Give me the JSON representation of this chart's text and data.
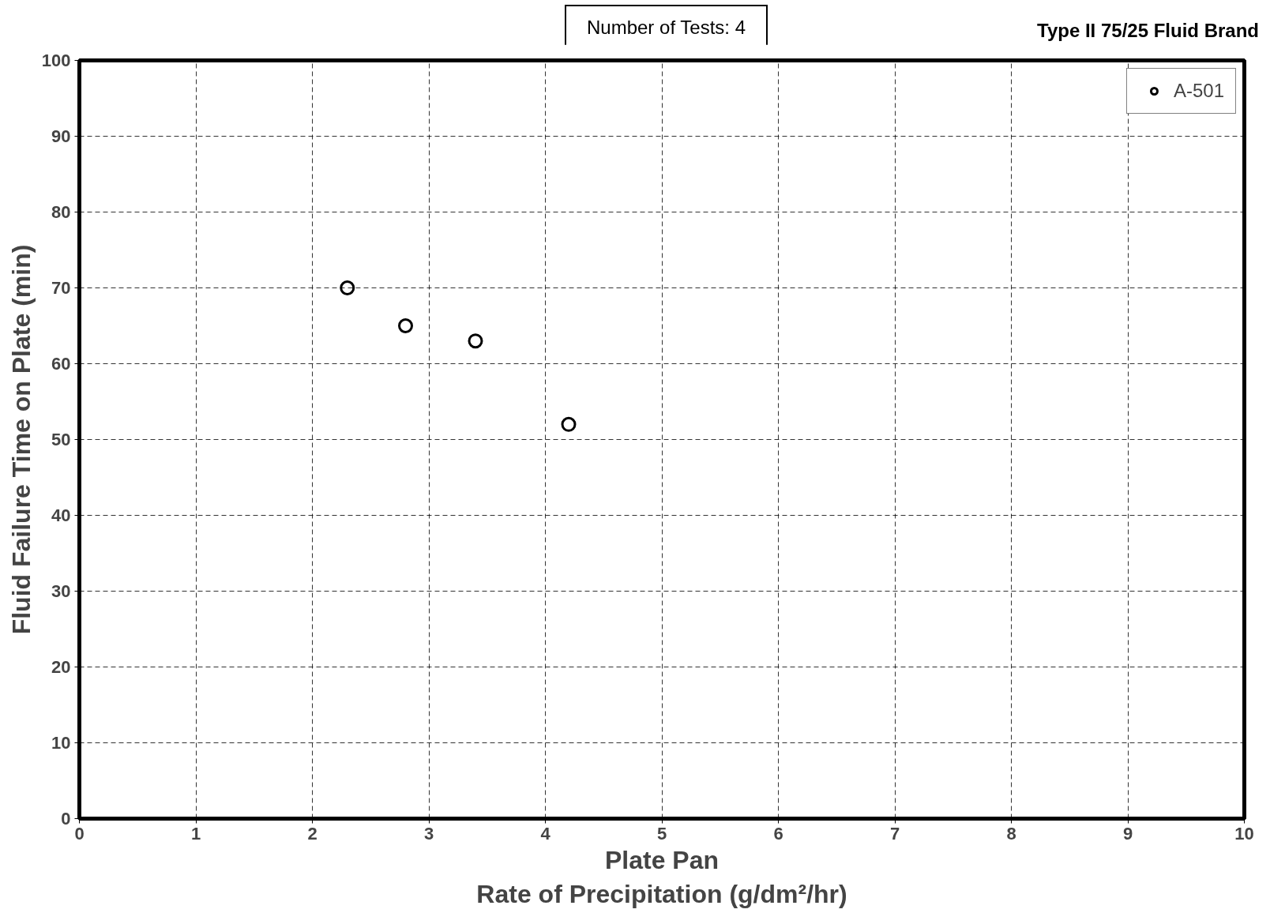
{
  "chart_data": {
    "type": "scatter",
    "xlabel": "Plate Pan\nRate of Precipitation (g/dm²/hr)",
    "ylabel": "Fluid Failure Time on Plate (min)",
    "annotations": [
      "Number of Tests: 4",
      "Type II 75/25 Fluid Brand"
    ],
    "x": [
      2.3,
      2.8,
      3.4,
      4.2
    ],
    "series": [
      {
        "name": "A-501",
        "color": "#000000",
        "values": [
          70,
          65,
          63,
          52
        ]
      }
    ],
    "xlim": [
      0,
      10
    ],
    "xticks": [
      0,
      1,
      2,
      3,
      4,
      5,
      6,
      7,
      8,
      9,
      10
    ],
    "ylim": [
      0,
      100
    ],
    "yticks": [
      0,
      10,
      20,
      30,
      40,
      50,
      60,
      70,
      80,
      90,
      100
    ],
    "grid": true,
    "legend": "top right",
    "marker": "circle"
  }
}
